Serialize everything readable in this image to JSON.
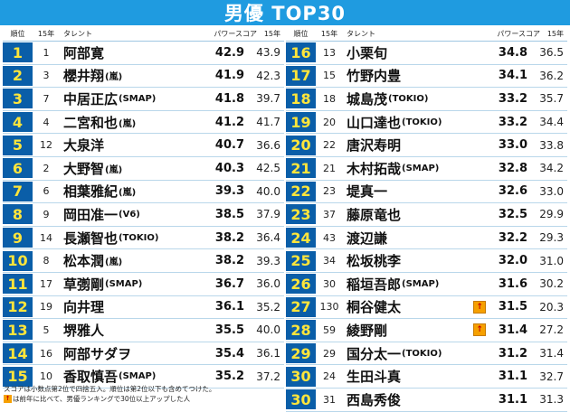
{
  "title": "男優 TOP30",
  "headers": {
    "rank": "順位",
    "prev": "15年",
    "name": "タレント",
    "score": "パワースコア",
    "last": "15年"
  },
  "colors": {
    "title_bg": "#1f9be0",
    "rank_bg": "#0a5ea8",
    "rank_text": "#ffe53b",
    "up_icon": "#f6a000"
  },
  "left": [
    {
      "rank": "1",
      "prev": "1",
      "name": "阿部寛",
      "group": "",
      "score": "42.9",
      "last": "43.9",
      "up": false
    },
    {
      "rank": "2",
      "prev": "3",
      "name": "櫻井翔",
      "group": "(嵐)",
      "score": "41.9",
      "last": "42.3",
      "up": false
    },
    {
      "rank": "3",
      "prev": "7",
      "name": "中居正広",
      "group": "(SMAP)",
      "score": "41.8",
      "last": "39.7",
      "up": false
    },
    {
      "rank": "4",
      "prev": "4",
      "name": "二宮和也",
      "group": "(嵐)",
      "score": "41.2",
      "last": "41.7",
      "up": false
    },
    {
      "rank": "5",
      "prev": "12",
      "name": "大泉洋",
      "group": "",
      "score": "40.7",
      "last": "36.6",
      "up": false
    },
    {
      "rank": "6",
      "prev": "2",
      "name": "大野智",
      "group": "(嵐)",
      "score": "40.3",
      "last": "42.5",
      "up": false
    },
    {
      "rank": "7",
      "prev": "6",
      "name": "相葉雅紀",
      "group": "(嵐)",
      "score": "39.3",
      "last": "40.0",
      "up": false
    },
    {
      "rank": "8",
      "prev": "9",
      "name": "岡田准一",
      "group": "(V6)",
      "score": "38.5",
      "last": "37.9",
      "up": false
    },
    {
      "rank": "9",
      "prev": "14",
      "name": "長瀬智也",
      "group": "(TOKIO)",
      "score": "38.2",
      "last": "36.4",
      "up": false
    },
    {
      "rank": "10",
      "prev": "8",
      "name": "松本潤",
      "group": "(嵐)",
      "score": "38.2",
      "last": "39.3",
      "up": false
    },
    {
      "rank": "11",
      "prev": "17",
      "name": "草彅剛",
      "group": "(SMAP)",
      "score": "36.7",
      "last": "36.0",
      "up": false
    },
    {
      "rank": "12",
      "prev": "19",
      "name": "向井理",
      "group": "",
      "score": "36.1",
      "last": "35.2",
      "up": false
    },
    {
      "rank": "13",
      "prev": "5",
      "name": "堺雅人",
      "group": "",
      "score": "35.5",
      "last": "40.0",
      "up": false
    },
    {
      "rank": "14",
      "prev": "16",
      "name": "阿部サダヲ",
      "group": "",
      "score": "35.4",
      "last": "36.1",
      "up": false
    },
    {
      "rank": "15",
      "prev": "10",
      "name": "香取慎吾",
      "group": "(SMAP)",
      "score": "35.2",
      "last": "37.2",
      "up": false
    }
  ],
  "right": [
    {
      "rank": "16",
      "prev": "13",
      "name": "小栗旬",
      "group": "",
      "score": "34.8",
      "last": "36.5",
      "up": false
    },
    {
      "rank": "17",
      "prev": "15",
      "name": "竹野内豊",
      "group": "",
      "score": "34.1",
      "last": "36.2",
      "up": false
    },
    {
      "rank": "18",
      "prev": "18",
      "name": "城島茂",
      "group": "(TOKIO)",
      "score": "33.2",
      "last": "35.7",
      "up": false
    },
    {
      "rank": "19",
      "prev": "20",
      "name": "山口達也",
      "group": "(TOKIO)",
      "score": "33.2",
      "last": "34.4",
      "up": false
    },
    {
      "rank": "20",
      "prev": "22",
      "name": "唐沢寿明",
      "group": "",
      "score": "33.0",
      "last": "33.8",
      "up": false
    },
    {
      "rank": "21",
      "prev": "21",
      "name": "木村拓哉",
      "group": "(SMAP)",
      "score": "32.8",
      "last": "34.2",
      "up": false
    },
    {
      "rank": "22",
      "prev": "23",
      "name": "堤真一",
      "group": "",
      "score": "32.6",
      "last": "33.0",
      "up": false
    },
    {
      "rank": "23",
      "prev": "37",
      "name": "藤原竜也",
      "group": "",
      "score": "32.5",
      "last": "29.9",
      "up": false
    },
    {
      "rank": "24",
      "prev": "43",
      "name": "渡辺謙",
      "group": "",
      "score": "32.2",
      "last": "29.3",
      "up": false
    },
    {
      "rank": "25",
      "prev": "34",
      "name": "松坂桃李",
      "group": "",
      "score": "32.0",
      "last": "31.0",
      "up": false
    },
    {
      "rank": "26",
      "prev": "30",
      "name": "稲垣吾郎",
      "group": "(SMAP)",
      "score": "31.6",
      "last": "30.2",
      "up": false
    },
    {
      "rank": "27",
      "prev": "130",
      "name": "桐谷健太",
      "group": "",
      "score": "31.5",
      "last": "20.3",
      "up": true
    },
    {
      "rank": "28",
      "prev": "59",
      "name": "綾野剛",
      "group": "",
      "score": "31.4",
      "last": "27.2",
      "up": true
    },
    {
      "rank": "29",
      "prev": "29",
      "name": "国分太一",
      "group": "(TOKIO)",
      "score": "31.2",
      "last": "31.4",
      "up": false
    },
    {
      "rank": "30",
      "prev": "24",
      "name": "生田斗真",
      "group": "",
      "score": "31.1",
      "last": "32.7",
      "up": false
    },
    {
      "rank": "30",
      "prev": "31",
      "name": "西島秀俊",
      "group": "",
      "score": "31.1",
      "last": "31.3",
      "up": false
    }
  ],
  "notes": {
    "line1": "スコアは小数点第2位で四捨五入。順位は第2位以下も含めてつけた。",
    "line2": "は前年に比べて、男優ランキングで30位以上アップした人"
  }
}
